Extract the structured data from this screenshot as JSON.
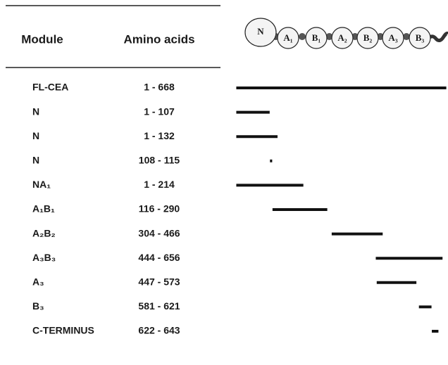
{
  "header": {
    "module": "Module",
    "amino_acids": "Amino acids"
  },
  "domains": [
    "N",
    "A₁",
    "B₁",
    "A₂",
    "B₂",
    "A₃",
    "B₃"
  ],
  "rows": [
    {
      "module": "FL-CEA",
      "range": "1 - 668",
      "start": 1,
      "end": 668
    },
    {
      "module": "N",
      "range": "1 - 107",
      "start": 1,
      "end": 107
    },
    {
      "module": "N",
      "range": "1 - 132",
      "start": 1,
      "end": 132
    },
    {
      "module": "N",
      "range": "108 - 115",
      "start": 108,
      "end": 115
    },
    {
      "module": "NA₁",
      "range": "1 - 214",
      "start": 1,
      "end": 214
    },
    {
      "module": "A₁B₁",
      "range": "116 - 290",
      "start": 116,
      "end": 290
    },
    {
      "module": "A₂B₂",
      "range": "304 - 466",
      "start": 304,
      "end": 466
    },
    {
      "module": "A₃B₃",
      "range": "444 - 656",
      "start": 444,
      "end": 656
    },
    {
      "module": "A₃",
      "range": "447 - 573",
      "start": 447,
      "end": 573
    },
    {
      "module": "B₃",
      "range": "581 - 621",
      "start": 581,
      "end": 621
    },
    {
      "module": "C-TERMINUS",
      "range": "622 - 643",
      "start": 622,
      "end": 643
    }
  ]
}
